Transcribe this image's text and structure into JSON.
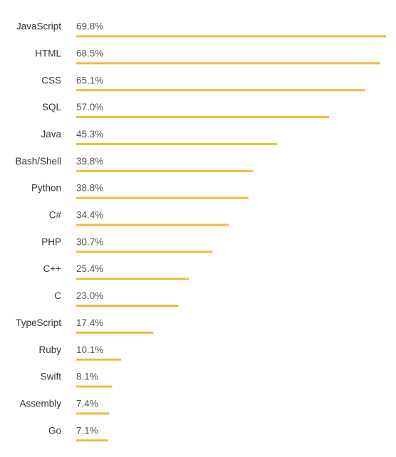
{
  "chart_data": {
    "type": "bar",
    "orientation": "horizontal",
    "categories": [
      "JavaScript",
      "HTML",
      "CSS",
      "SQL",
      "Java",
      "Bash/Shell",
      "Python",
      "C#",
      "PHP",
      "C++",
      "C",
      "TypeScript",
      "Ruby",
      "Swift",
      "Assembly",
      "Go"
    ],
    "values": [
      69.8,
      68.5,
      65.1,
      57.0,
      45.3,
      39.8,
      38.8,
      34.4,
      30.7,
      25.4,
      23.0,
      17.4,
      10.1,
      8.1,
      7.4,
      7.1
    ],
    "value_labels": [
      "69.8%",
      "68.5%",
      "65.1%",
      "57.0%",
      "45.3%",
      "39.8%",
      "38.8%",
      "34.4%",
      "30.7%",
      "25.4%",
      "23.0%",
      "17.4%",
      "10.1%",
      "8.1%",
      "7.4%",
      "7.1%"
    ],
    "title": "",
    "xlabel": "",
    "ylabel": "",
    "xlim": [
      0,
      69.8
    ],
    "grid": false,
    "legend": "none",
    "bar_color": "#F4B840",
    "label_color": "#333333",
    "value_color": "#555555"
  }
}
